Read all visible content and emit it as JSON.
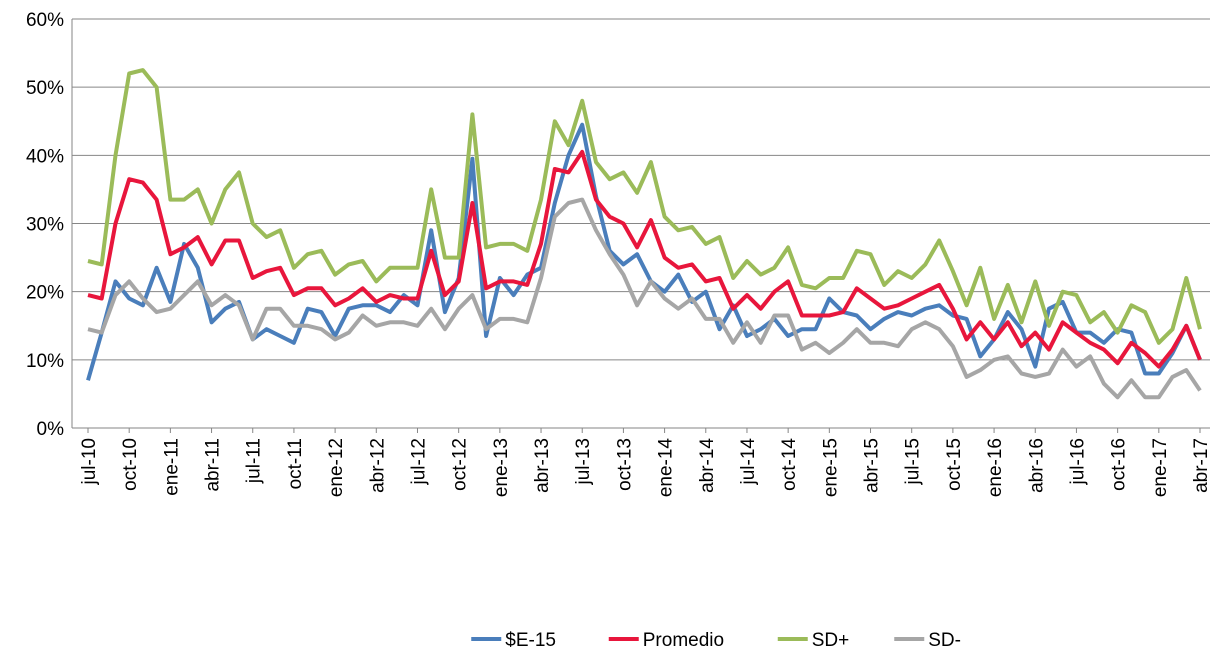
{
  "chart_data": {
    "type": "line",
    "categories": [
      "jul-10",
      null,
      null,
      "oct-10",
      null,
      null,
      "ene-11",
      null,
      null,
      "abr-11",
      null,
      null,
      "jul-11",
      null,
      null,
      "oct-11",
      null,
      null,
      "ene-12",
      null,
      null,
      "abr-12",
      null,
      null,
      "jul-12",
      null,
      null,
      "oct-12",
      null,
      null,
      "ene-13",
      null,
      null,
      "abr-13",
      null,
      null,
      "jul-13",
      null,
      null,
      "oct-13",
      null,
      null,
      "ene-14",
      null,
      null,
      "abr-14",
      null,
      null,
      "jul-14",
      null,
      null,
      "oct-14",
      null,
      null,
      "ene-15",
      null,
      null,
      "abr-15",
      null,
      null,
      "jul-15",
      null,
      null,
      "oct-15",
      null,
      null,
      "ene-16",
      null,
      null,
      "abr-16",
      null,
      null,
      "jul-16",
      null,
      null,
      "oct-16",
      null,
      null,
      "ene-17",
      null,
      null,
      "abr-17"
    ],
    "series": [
      {
        "name": "$E-15",
        "color": "#4a7ebb",
        "values": [
          7,
          14,
          21.5,
          19,
          18,
          23.5,
          18.5,
          27,
          23.5,
          15.5,
          17.5,
          18.5,
          13,
          14.5,
          13.5,
          12.5,
          17.5,
          17,
          13.5,
          17.5,
          18,
          18,
          17,
          19.5,
          18,
          29,
          17,
          22,
          39.5,
          13.5,
          22,
          19.5,
          22.5,
          23.5,
          33,
          40,
          44.5,
          34,
          26,
          24,
          25.5,
          21.5,
          20,
          22.5,
          18.5,
          20,
          14.5,
          18,
          13.5,
          14.5,
          16,
          13.5,
          14.5,
          14.5,
          19,
          17,
          16.5,
          14.5,
          16,
          17,
          16.5,
          17.5,
          18,
          16.5,
          16,
          10.5,
          13,
          17,
          14.5,
          9,
          17.5,
          18.5,
          14,
          14,
          12.5,
          14.5,
          14,
          8,
          8,
          11,
          15,
          10
        ]
      },
      {
        "name": "Promedio",
        "color": "#e8163c",
        "values": [
          19.5,
          19,
          30,
          36.5,
          36,
          33.5,
          25.5,
          26.5,
          28,
          24,
          27.5,
          27.5,
          22,
          23,
          23.5,
          19.5,
          20.5,
          20.5,
          18,
          19,
          20.5,
          18.5,
          19.5,
          19,
          19,
          26,
          19.5,
          21.5,
          33,
          20.5,
          21.5,
          21.5,
          21,
          27,
          38,
          37.5,
          40.5,
          33.5,
          31,
          30,
          26.5,
          30.5,
          25,
          23.5,
          24,
          21.5,
          22,
          17.5,
          19.5,
          17.5,
          20,
          21.5,
          16.5,
          16.5,
          16.5,
          17,
          20.5,
          19,
          17.5,
          18,
          19,
          20,
          21,
          17.5,
          13,
          15.5,
          13,
          15.5,
          12,
          14,
          11.5,
          15.5,
          14,
          12.5,
          11.5,
          9.5,
          12.5,
          11,
          9,
          11.5,
          15,
          10
        ]
      },
      {
        "name": "SD+",
        "color": "#9bbb59",
        "values": [
          24.5,
          24,
          40,
          52,
          52.5,
          50,
          33.5,
          33.5,
          35,
          30,
          35,
          37.5,
          30,
          28,
          29,
          23.5,
          25.5,
          26,
          22.5,
          24,
          24.5,
          21.5,
          23.5,
          23.5,
          23.5,
          35,
          25,
          25,
          46,
          26.5,
          27,
          27,
          26,
          33.5,
          45,
          41.5,
          48,
          39,
          36.5,
          37.5,
          34.5,
          39,
          31,
          29,
          29.5,
          27,
          28,
          22,
          24.5,
          22.5,
          23.5,
          26.5,
          21,
          20.5,
          22,
          22,
          26,
          25.5,
          21,
          23,
          22,
          24,
          27.5,
          23,
          18,
          23.5,
          16,
          21,
          15.5,
          21.5,
          15,
          20,
          19.5,
          15.5,
          17,
          14,
          18,
          17,
          12.5,
          14.5,
          22,
          14.5
        ]
      },
      {
        "name": "SD-",
        "color": "#a6a6a6",
        "values": [
          14.5,
          14,
          19.5,
          21.5,
          19,
          17,
          17.5,
          19.5,
          21.5,
          18,
          19.5,
          18,
          13,
          17.5,
          17.5,
          15,
          15,
          14.5,
          13,
          14,
          16.5,
          15,
          15.5,
          15.5,
          15,
          17.5,
          14.5,
          17.5,
          19.5,
          14.5,
          16,
          16,
          15.5,
          22,
          31,
          33,
          33.5,
          29,
          25.5,
          22.5,
          18,
          21.5,
          19,
          17.5,
          19,
          16,
          16,
          12.5,
          15.5,
          12.5,
          16.5,
          16.5,
          11.5,
          12.5,
          11,
          12.5,
          14.5,
          12.5,
          12.5,
          12,
          14.5,
          15.5,
          14.5,
          12,
          7.5,
          8.5,
          10,
          10.5,
          8,
          7.5,
          8,
          11.5,
          9,
          10.5,
          6.5,
          4.5,
          7,
          4.5,
          4.5,
          7.5,
          8.5,
          5.5
        ]
      }
    ],
    "ylim": [
      0,
      60
    ],
    "yticks": [
      {
        "value": 0,
        "label": "0%"
      },
      {
        "value": 10,
        "label": "10%"
      },
      {
        "value": 20,
        "label": "20%"
      },
      {
        "value": 30,
        "label": "30%"
      },
      {
        "value": 40,
        "label": "40%"
      },
      {
        "value": 50,
        "label": "50%"
      },
      {
        "value": 60,
        "label": "60%"
      }
    ],
    "grid": true,
    "legend": "bottom"
  }
}
